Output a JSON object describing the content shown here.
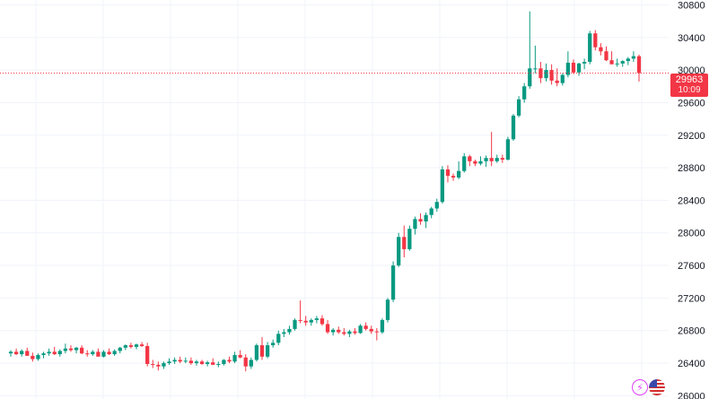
{
  "chart_data": {
    "type": "candlestick",
    "y_axis": {
      "position": "right",
      "range": [
        25960,
        30860
      ],
      "ticks": [
        30800,
        30400,
        30000,
        29600,
        29200,
        28800,
        28400,
        28000,
        27600,
        27200,
        26800,
        26400,
        26000
      ]
    },
    "grid": true,
    "last_price": {
      "value": "29963",
      "countdown": "10:09",
      "line_value": 29963
    },
    "colors": {
      "up": "#089981",
      "down": "#f23645",
      "grid": "#f0f3fa",
      "price_line": "#f23645",
      "axis_text": "#131722"
    },
    "candles": [
      [
        26520,
        26560,
        26480,
        26540
      ],
      [
        26540,
        26580,
        26500,
        26510
      ],
      [
        26510,
        26570,
        26480,
        26550
      ],
      [
        26550,
        26590,
        26510,
        26490
      ],
      [
        26490,
        26530,
        26420,
        26450
      ],
      [
        26450,
        26520,
        26430,
        26500
      ],
      [
        26500,
        26540,
        26460,
        26520
      ],
      [
        26520,
        26580,
        26490,
        26540
      ],
      [
        26540,
        26600,
        26500,
        26510
      ],
      [
        26510,
        26570,
        26480,
        26550
      ],
      [
        26550,
        26640,
        26520,
        26580
      ],
      [
        26580,
        26620,
        26540,
        26560
      ],
      [
        26560,
        26600,
        26520,
        26590
      ],
      [
        26590,
        26620,
        26510,
        26520
      ],
      [
        26520,
        26560,
        26480,
        26510
      ],
      [
        26510,
        26560,
        26490,
        26540
      ],
      [
        26540,
        26580,
        26500,
        26480
      ],
      [
        26480,
        26560,
        26470,
        26540
      ],
      [
        26540,
        26580,
        26500,
        26510
      ],
      [
        26510,
        26570,
        26490,
        26550
      ],
      [
        26550,
        26600,
        26520,
        26590
      ],
      [
        26590,
        26630,
        26560,
        26620
      ],
      [
        26620,
        26650,
        26580,
        26600
      ],
      [
        26600,
        26640,
        26570,
        26630
      ],
      [
        26630,
        26660,
        26600,
        26610
      ],
      [
        26610,
        26650,
        26360,
        26390
      ],
      [
        26390,
        26440,
        26340,
        26380
      ],
      [
        26380,
        26420,
        26310,
        26360
      ],
      [
        26360,
        26420,
        26330,
        26400
      ],
      [
        26400,
        26460,
        26380,
        26420
      ],
      [
        26420,
        26470,
        26390,
        26440
      ],
      [
        26440,
        26480,
        26400,
        26420
      ],
      [
        26420,
        26470,
        26400,
        26430
      ],
      [
        26430,
        26470,
        26380,
        26400
      ],
      [
        26400,
        26440,
        26370,
        26420
      ],
      [
        26420,
        26440,
        26380,
        26390
      ],
      [
        26390,
        26430,
        26360,
        26410
      ],
      [
        26410,
        26460,
        26380,
        26380
      ],
      [
        26380,
        26420,
        26350,
        26390
      ],
      [
        26390,
        26450,
        26370,
        26440
      ],
      [
        26440,
        26480,
        26400,
        26420
      ],
      [
        26420,
        26540,
        26400,
        26500
      ],
      [
        26500,
        26560,
        26460,
        26470
      ],
      [
        26470,
        26510,
        26300,
        26360
      ],
      [
        26360,
        26470,
        26330,
        26440
      ],
      [
        26440,
        26640,
        26420,
        26620
      ],
      [
        26620,
        26720,
        26440,
        26480
      ],
      [
        26480,
        26660,
        26460,
        26620
      ],
      [
        26620,
        26690,
        26590,
        26650
      ],
      [
        26650,
        26800,
        26620,
        26760
      ],
      [
        26760,
        26820,
        26720,
        26780
      ],
      [
        26780,
        26860,
        26750,
        26820
      ],
      [
        26820,
        26950,
        26800,
        26930
      ],
      [
        26930,
        27170,
        26890,
        26920
      ],
      [
        26920,
        26980,
        26860,
        26900
      ],
      [
        26900,
        26950,
        26860,
        26930
      ],
      [
        26930,
        26980,
        26890,
        26950
      ],
      [
        26950,
        26990,
        26860,
        26880
      ],
      [
        26880,
        26930,
        26760,
        26780
      ],
      [
        26780,
        26830,
        26740,
        26810
      ],
      [
        26810,
        26850,
        26760,
        26780
      ],
      [
        26780,
        26830,
        26740,
        26760
      ],
      [
        26760,
        26810,
        26720,
        26790
      ],
      [
        26790,
        26830,
        26750,
        26770
      ],
      [
        26770,
        26880,
        26760,
        26860
      ],
      [
        26860,
        26900,
        26800,
        26820
      ],
      [
        26820,
        26860,
        26760,
        26790
      ],
      [
        26790,
        26830,
        26680,
        26780
      ],
      [
        26780,
        26950,
        26760,
        26930
      ],
      [
        26930,
        27200,
        26900,
        27180
      ],
      [
        27180,
        27650,
        27150,
        27600
      ],
      [
        27600,
        28000,
        27580,
        27950
      ],
      [
        27950,
        28090,
        27700,
        27800
      ],
      [
        27800,
        28090,
        27780,
        28050
      ],
      [
        28050,
        28200,
        27980,
        28170
      ],
      [
        28170,
        28240,
        28100,
        28140
      ],
      [
        28140,
        28250,
        28060,
        28220
      ],
      [
        28220,
        28320,
        28180,
        28300
      ],
      [
        28300,
        28420,
        28260,
        28380
      ],
      [
        28380,
        28820,
        28360,
        28780
      ],
      [
        28780,
        28830,
        28620,
        28700
      ],
      [
        28700,
        28730,
        28640,
        28680
      ],
      [
        28680,
        28880,
        28660,
        28760
      ],
      [
        28760,
        28980,
        28740,
        28940
      ],
      [
        28940,
        28960,
        28820,
        28880
      ],
      [
        28880,
        28900,
        28820,
        28850
      ],
      [
        28850,
        28940,
        28830,
        28880
      ],
      [
        28880,
        28950,
        28810,
        28920
      ],
      [
        28920,
        29240,
        28820,
        28880
      ],
      [
        28880,
        28960,
        28860,
        28920
      ],
      [
        28920,
        28960,
        28860,
        28900
      ],
      [
        28900,
        29180,
        28890,
        29150
      ],
      [
        29150,
        29460,
        29130,
        29440
      ],
      [
        29440,
        29680,
        29420,
        29640
      ],
      [
        29640,
        29840,
        29600,
        29800
      ],
      [
        29800,
        30720,
        29770,
        30020
      ],
      [
        30020,
        30300,
        29960,
        30020
      ],
      [
        30020,
        30100,
        29840,
        29900
      ],
      [
        29900,
        30080,
        29860,
        30000
      ],
      [
        30000,
        30070,
        29820,
        29870
      ],
      [
        29870,
        30020,
        29800,
        29840
      ],
      [
        29840,
        29960,
        29810,
        29940
      ],
      [
        29940,
        30230,
        29910,
        30090
      ],
      [
        30090,
        30130,
        29950,
        29970
      ],
      [
        29970,
        30090,
        29930,
        30080
      ],
      [
        30080,
        30140,
        30010,
        30100
      ],
      [
        30100,
        30480,
        30070,
        30450
      ],
      [
        30450,
        30490,
        30240,
        30280
      ],
      [
        30280,
        30330,
        30180,
        30230
      ],
      [
        30230,
        30290,
        30110,
        30120
      ],
      [
        30120,
        30230,
        30100,
        30070
      ],
      [
        30070,
        30140,
        30040,
        30080
      ],
      [
        30080,
        30120,
        30040,
        30110
      ],
      [
        30110,
        30160,
        30060,
        30140
      ],
      [
        30140,
        30230,
        30100,
        30170
      ],
      [
        30170,
        30190,
        29860,
        29963
      ]
    ]
  },
  "badges": {
    "lightning_icon": "lightning-icon",
    "flag_icon": "us-flag-icon"
  }
}
